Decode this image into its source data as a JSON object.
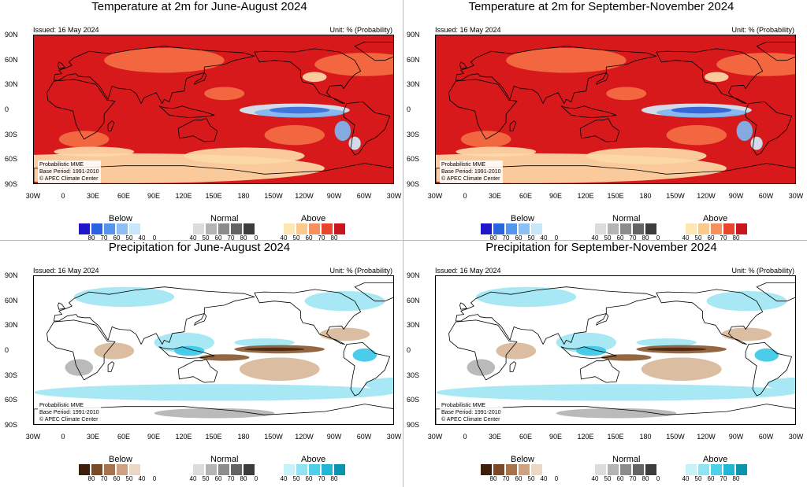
{
  "panels": [
    {
      "id": "temp-jja",
      "title": "Temperature at 2m for June-August 2024",
      "issued": "Issued: 16 May 2024",
      "unit": "Unit: % (Probability)",
      "credit": [
        "Probabilistic MME",
        "Base Period: 1991-2010",
        "© APEC Climate Center"
      ],
      "map_colors": {
        "base": "#d7191c",
        "mid": "#f46d43",
        "light": "#fdd9a8",
        "cold1": "#3b6fd9",
        "cold2": "#7eb6f0",
        "cold3": "#d3ecfb",
        "land": "#000000"
      },
      "legend": {
        "below_label": "Below",
        "normal_label": "Normal",
        "above_label": "Above",
        "below_colors": [
          "#1f16c8",
          "#2a63e0",
          "#5595ec",
          "#8cc0f4",
          "#c8e7fb",
          "#ffffff"
        ],
        "normal_colors": [
          "#ffffff",
          "#dcdcdc",
          "#b4b4b4",
          "#8c8c8c",
          "#646464",
          "#3c3c3c"
        ],
        "above_colors": [
          "#ffffff",
          "#fde6b0",
          "#fbc98a",
          "#f5915c",
          "#e9452d",
          "#c7161d"
        ],
        "below_ticks": [
          "80",
          "70",
          "60",
          "50",
          "40",
          "0"
        ],
        "normal_ticks": [
          "40",
          "50",
          "60",
          "70",
          "80",
          "0"
        ],
        "above_ticks": [
          "40",
          "50",
          "60",
          "70",
          "80"
        ]
      }
    },
    {
      "id": "temp-son",
      "title": "Temperature at 2m for September-November 2024",
      "issued": "Issued: 16 May 2024",
      "unit": "Unit: % (Probability)",
      "credit": [
        "Probabilistic MME",
        "Base Period: 1991-2010",
        "© APEC Climate Center"
      ],
      "map_colors": {
        "base": "#d7191c",
        "mid": "#f46d43",
        "light": "#fdd9a8",
        "cold1": "#2f5fd4",
        "cold2": "#7eb6f0",
        "cold3": "#d3ecfb",
        "land": "#000000"
      },
      "legend": {
        "below_label": "Below",
        "normal_label": "Normal",
        "above_label": "Above",
        "below_colors": [
          "#1f16c8",
          "#2a63e0",
          "#5595ec",
          "#8cc0f4",
          "#c8e7fb",
          "#ffffff"
        ],
        "normal_colors": [
          "#ffffff",
          "#dcdcdc",
          "#b4b4b4",
          "#8c8c8c",
          "#646464",
          "#3c3c3c"
        ],
        "above_colors": [
          "#ffffff",
          "#fde6b0",
          "#fbc98a",
          "#f5915c",
          "#e9452d",
          "#c7161d"
        ],
        "below_ticks": [
          "80",
          "70",
          "60",
          "50",
          "40",
          "0"
        ],
        "normal_ticks": [
          "40",
          "50",
          "60",
          "70",
          "80",
          "0"
        ],
        "above_ticks": [
          "40",
          "50",
          "60",
          "70",
          "80"
        ]
      }
    },
    {
      "id": "prec-jja",
      "title": "Precipitation for June-August 2024",
      "issued": "Issued: 16 May 2024",
      "unit": "Unit: % (Probability)",
      "credit": [
        "Probabilistic MME",
        "Base Period: 1991-2010",
        "© APEC Climate Center"
      ],
      "map_colors": {
        "base": "#ffffff",
        "wet1": "#9fe6f3",
        "wet2": "#3cc8e6",
        "dry1": "#d8b89a",
        "dry2": "#8a5a33",
        "dry3": "#4a2810",
        "grey": "#b4b4b4",
        "land": "#000000"
      },
      "legend": {
        "below_label": "Below",
        "normal_label": "Normal",
        "above_label": "Above",
        "below_colors": [
          "#3d1f0c",
          "#7a4a26",
          "#a8724a",
          "#cfa17e",
          "#ecd6c4",
          "#ffffff"
        ],
        "normal_colors": [
          "#ffffff",
          "#dcdcdc",
          "#b4b4b4",
          "#8c8c8c",
          "#646464",
          "#3c3c3c"
        ],
        "above_colors": [
          "#ffffff",
          "#c6f2fa",
          "#8fe3f3",
          "#4dd0ea",
          "#20b6d6",
          "#0a94ad"
        ],
        "below_ticks": [
          "80",
          "70",
          "60",
          "50",
          "40",
          "0"
        ],
        "normal_ticks": [
          "40",
          "50",
          "60",
          "70",
          "80",
          "0"
        ],
        "above_ticks": [
          "40",
          "50",
          "60",
          "70",
          "80"
        ]
      }
    },
    {
      "id": "prec-son",
      "title": "Precipitation for September-November 2024",
      "issued": "Issued: 16 May 2024",
      "unit": "Unit: % (Probability)",
      "credit": [
        "Probabilistic MME",
        "Base Period: 1991-2010",
        "© APEC Climate Center"
      ],
      "map_colors": {
        "base": "#ffffff",
        "wet1": "#9fe6f3",
        "wet2": "#3cc8e6",
        "dry1": "#d8b89a",
        "dry2": "#8a5a33",
        "dry3": "#4a2810",
        "grey": "#b4b4b4",
        "land": "#000000"
      },
      "legend": {
        "below_label": "Below",
        "normal_label": "Normal",
        "above_label": "Above",
        "below_colors": [
          "#3d1f0c",
          "#7a4a26",
          "#a8724a",
          "#cfa17e",
          "#ecd6c4",
          "#ffffff"
        ],
        "normal_colors": [
          "#ffffff",
          "#dcdcdc",
          "#b4b4b4",
          "#8c8c8c",
          "#646464",
          "#3c3c3c"
        ],
        "above_colors": [
          "#ffffff",
          "#c6f2fa",
          "#8fe3f3",
          "#4dd0ea",
          "#20b6d6",
          "#0a94ad"
        ],
        "below_ticks": [
          "80",
          "70",
          "60",
          "50",
          "40",
          "0"
        ],
        "normal_ticks": [
          "40",
          "50",
          "60",
          "70",
          "80",
          "0"
        ],
        "above_ticks": [
          "40",
          "50",
          "60",
          "70",
          "80"
        ]
      }
    }
  ],
  "axes": {
    "y_labels": [
      "90N",
      "60N",
      "30N",
      "0",
      "30S",
      "60S",
      "90S"
    ],
    "x_labels": [
      "30W",
      "0",
      "30E",
      "60E",
      "90E",
      "120E",
      "150E",
      "180",
      "150W",
      "120W",
      "90W",
      "60W",
      "30W"
    ]
  }
}
